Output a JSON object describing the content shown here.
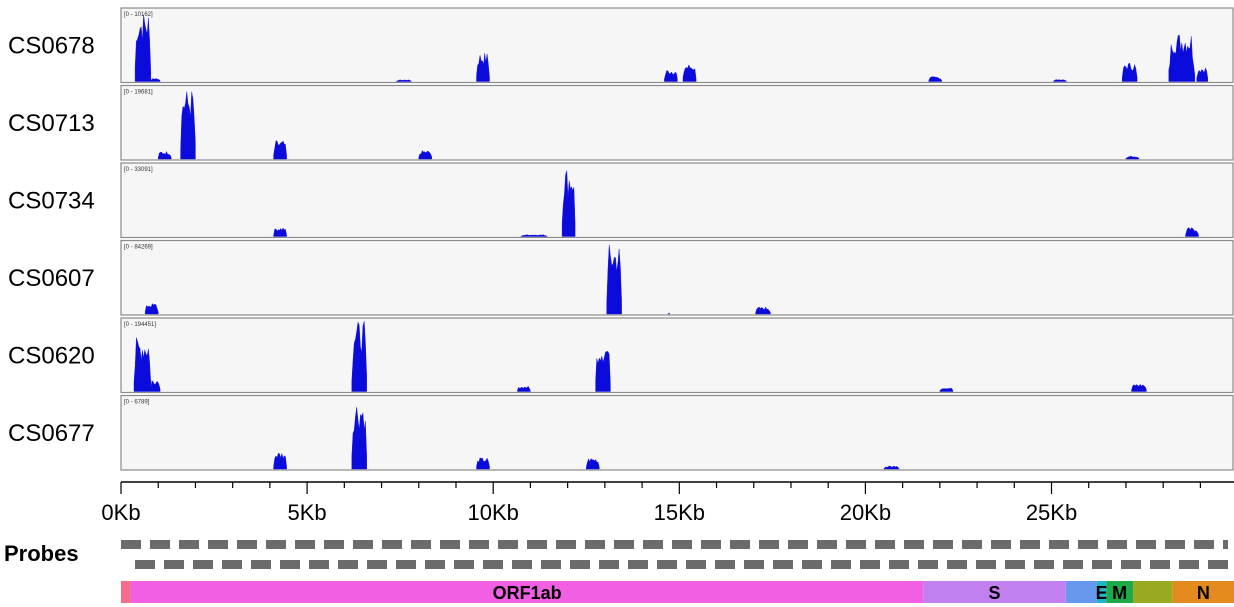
{
  "chart_data": {
    "type": "area",
    "x_unit": "bp",
    "xlim": [
      0,
      29903
    ],
    "x_ticks": [
      {
        "value": 0,
        "label": "0Kb"
      },
      {
        "value": 5000,
        "label": "5Kb"
      },
      {
        "value": 10000,
        "label": "10Kb"
      },
      {
        "value": 15000,
        "label": "15Kb"
      },
      {
        "value": 20000,
        "label": "20Kb"
      },
      {
        "value": 25000,
        "label": "25Kb"
      }
    ],
    "tracks": [
      {
        "name": "CS0678",
        "range_label": "[0 - 10162]",
        "max": 10162,
        "color": "#0b0bdc",
        "peaks": [
          {
            "start": 380,
            "end": 800,
            "height": 10162
          },
          {
            "start": 800,
            "end": 1050,
            "height": 500
          },
          {
            "start": 7400,
            "end": 7800,
            "height": 250
          },
          {
            "start": 9550,
            "end": 9900,
            "height": 4200
          },
          {
            "start": 14600,
            "end": 14950,
            "height": 1800
          },
          {
            "start": 15100,
            "end": 15450,
            "height": 2600
          },
          {
            "start": 21700,
            "end": 22050,
            "height": 700
          },
          {
            "start": 25050,
            "end": 25400,
            "height": 300
          },
          {
            "start": 26900,
            "end": 27300,
            "height": 2800
          },
          {
            "start": 28150,
            "end": 28850,
            "height": 7200
          },
          {
            "start": 28900,
            "end": 29200,
            "height": 2200
          }
        ]
      },
      {
        "name": "CS0713",
        "range_label": "[0 - 19681]",
        "max": 19681,
        "color": "#0b0bdc",
        "peaks": [
          {
            "start": 1000,
            "end": 1350,
            "height": 2200
          },
          {
            "start": 1600,
            "end": 2000,
            "height": 19681
          },
          {
            "start": 4100,
            "end": 4450,
            "height": 5200
          },
          {
            "start": 8000,
            "end": 8350,
            "height": 2400
          },
          {
            "start": 27000,
            "end": 27350,
            "height": 800
          }
        ]
      },
      {
        "name": "CS0734",
        "range_label": "[0 - 33091]",
        "max": 33091,
        "color": "#0b0bdc",
        "peaks": [
          {
            "start": 4100,
            "end": 4450,
            "height": 4500
          },
          {
            "start": 10750,
            "end": 11450,
            "height": 900
          },
          {
            "start": 11850,
            "end": 12200,
            "height": 33091
          },
          {
            "start": 28600,
            "end": 28950,
            "height": 4200
          }
        ]
      },
      {
        "name": "CS0607",
        "range_label": "[0 - 84269]",
        "max": 84269,
        "color": "#0b0bdc",
        "peaks": [
          {
            "start": 650,
            "end": 1000,
            "height": 13000
          },
          {
            "start": 13050,
            "end": 13450,
            "height": 84269
          },
          {
            "start": 14700,
            "end": 14750,
            "height": 1200
          },
          {
            "start": 17050,
            "end": 17450,
            "height": 8500
          }
        ]
      },
      {
        "name": "CS0620",
        "range_label": "[0 - 194451]",
        "max": 194451,
        "color": "#0b0bdc",
        "peaks": [
          {
            "start": 350,
            "end": 800,
            "height": 150000
          },
          {
            "start": 800,
            "end": 1050,
            "height": 35000
          },
          {
            "start": 6200,
            "end": 6600,
            "height": 194451
          },
          {
            "start": 10650,
            "end": 11000,
            "height": 15000
          },
          {
            "start": 12750,
            "end": 13150,
            "height": 140000
          },
          {
            "start": 22000,
            "end": 22350,
            "height": 12000
          },
          {
            "start": 27150,
            "end": 27550,
            "height": 22000
          }
        ]
      },
      {
        "name": "CS0677",
        "range_label": "[0 - 6789]",
        "max": 6789,
        "color": "#0b0bdc",
        "peaks": [
          {
            "start": 4100,
            "end": 4450,
            "height": 1700
          },
          {
            "start": 6200,
            "end": 6600,
            "height": 6789
          },
          {
            "start": 9550,
            "end": 9900,
            "height": 1100
          },
          {
            "start": 12500,
            "end": 12850,
            "height": 1100
          },
          {
            "start": 20500,
            "end": 20900,
            "height": 300
          }
        ]
      }
    ],
    "probes_label": "Probes",
    "probe_color": "#6b6b6b",
    "genes": [
      {
        "name": "",
        "start": 0,
        "end": 265,
        "color": "#f46b8c"
      },
      {
        "name": "ORF1ab",
        "start": 265,
        "end": 21555,
        "color": "#f25fe3"
      },
      {
        "name": "S",
        "start": 21555,
        "end": 25384,
        "color": "#c17ff0"
      },
      {
        "name": "",
        "start": 25384,
        "end": 26220,
        "color": "#6699ee"
      },
      {
        "name": "E",
        "start": 26220,
        "end": 26472,
        "color": "#1fb7c7"
      },
      {
        "name": "M",
        "start": 26472,
        "end": 27191,
        "color": "#1faa4a"
      },
      {
        "name": "",
        "start": 27191,
        "end": 28259,
        "color": "#99aa22"
      },
      {
        "name": "N",
        "start": 28259,
        "end": 29903,
        "color": "#e38b1e"
      }
    ]
  }
}
